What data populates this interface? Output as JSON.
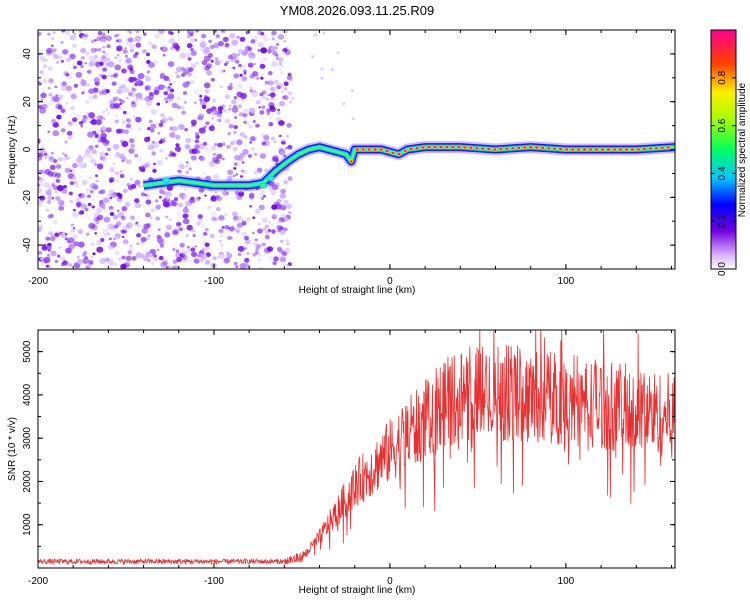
{
  "title": "YM08.2026.093.11.25.R09",
  "chart_data": [
    {
      "type": "heatmap",
      "name": "spectrogram",
      "xlabel": "Height of straight line (km)",
      "ylabel": "Frequency (Hz)",
      "xlim": [
        -200,
        162
      ],
      "ylim": [
        -50,
        50
      ],
      "xticks": [
        -200,
        -100,
        0,
        100
      ],
      "xtick_labels": [
        "-200",
        "-100",
        "0",
        "100"
      ],
      "yticks": [
        -40,
        -20,
        0,
        20,
        40
      ],
      "ytick_labels": [
        "-40",
        "-20",
        "0",
        "20",
        "40"
      ],
      "noise_region": {
        "x_from": -200,
        "x_to": -60,
        "density": "high"
      },
      "signal_trace": {
        "x": [
          -140,
          -130,
          -120,
          -110,
          -100,
          -90,
          -80,
          -72,
          -65,
          -58,
          -52,
          -46,
          -40,
          -35,
          -30,
          -25,
          -22,
          -20,
          -15,
          -10,
          -5,
          0,
          5,
          10,
          20,
          40,
          60,
          80,
          100,
          120,
          140,
          162
        ],
        "y": [
          -15,
          -14,
          -13,
          -14,
          -15,
          -15,
          -15,
          -14,
          -9,
          -5,
          -2,
          0,
          1,
          0,
          -1,
          -2,
          -5,
          0,
          0,
          0,
          0,
          -1,
          -2,
          0,
          1,
          1,
          0,
          1,
          0,
          0,
          0,
          1
        ]
      }
    },
    {
      "type": "line",
      "name": "snr",
      "xlabel": "Height of straight line (km)",
      "ylabel": "SNR (10 * v/v)",
      "xlim": [
        -200,
        162
      ],
      "ylim": [
        0,
        5500
      ],
      "xticks": [
        -200,
        -100,
        0,
        100
      ],
      "xtick_labels": [
        "-200",
        "-100",
        "0",
        "100"
      ],
      "yticks": [
        1000,
        2000,
        3000,
        4000,
        5000
      ],
      "ytick_labels": [
        "1000",
        "2000",
        "3000",
        "4000",
        "5000"
      ],
      "color": "#e83030",
      "envelope": {
        "x": [
          -200,
          -60,
          -50,
          -40,
          -30,
          -20,
          -10,
          0,
          10,
          20,
          30,
          40,
          60,
          80,
          100,
          120,
          140,
          162
        ],
        "y": [
          150,
          150,
          250,
          700,
          1300,
          1900,
          2300,
          2700,
          3100,
          3400,
          3800,
          4000,
          4050,
          4000,
          3900,
          3800,
          3650,
          3500
        ]
      }
    }
  ],
  "colorbar": {
    "label": "Normalized spectral amplitude",
    "range": [
      0,
      1
    ],
    "ticks": [
      0.0,
      0.2,
      0.4,
      0.6,
      0.8
    ],
    "tick_labels": [
      "0.0",
      "0.2",
      "0.4",
      "0.6",
      "0.8"
    ]
  }
}
